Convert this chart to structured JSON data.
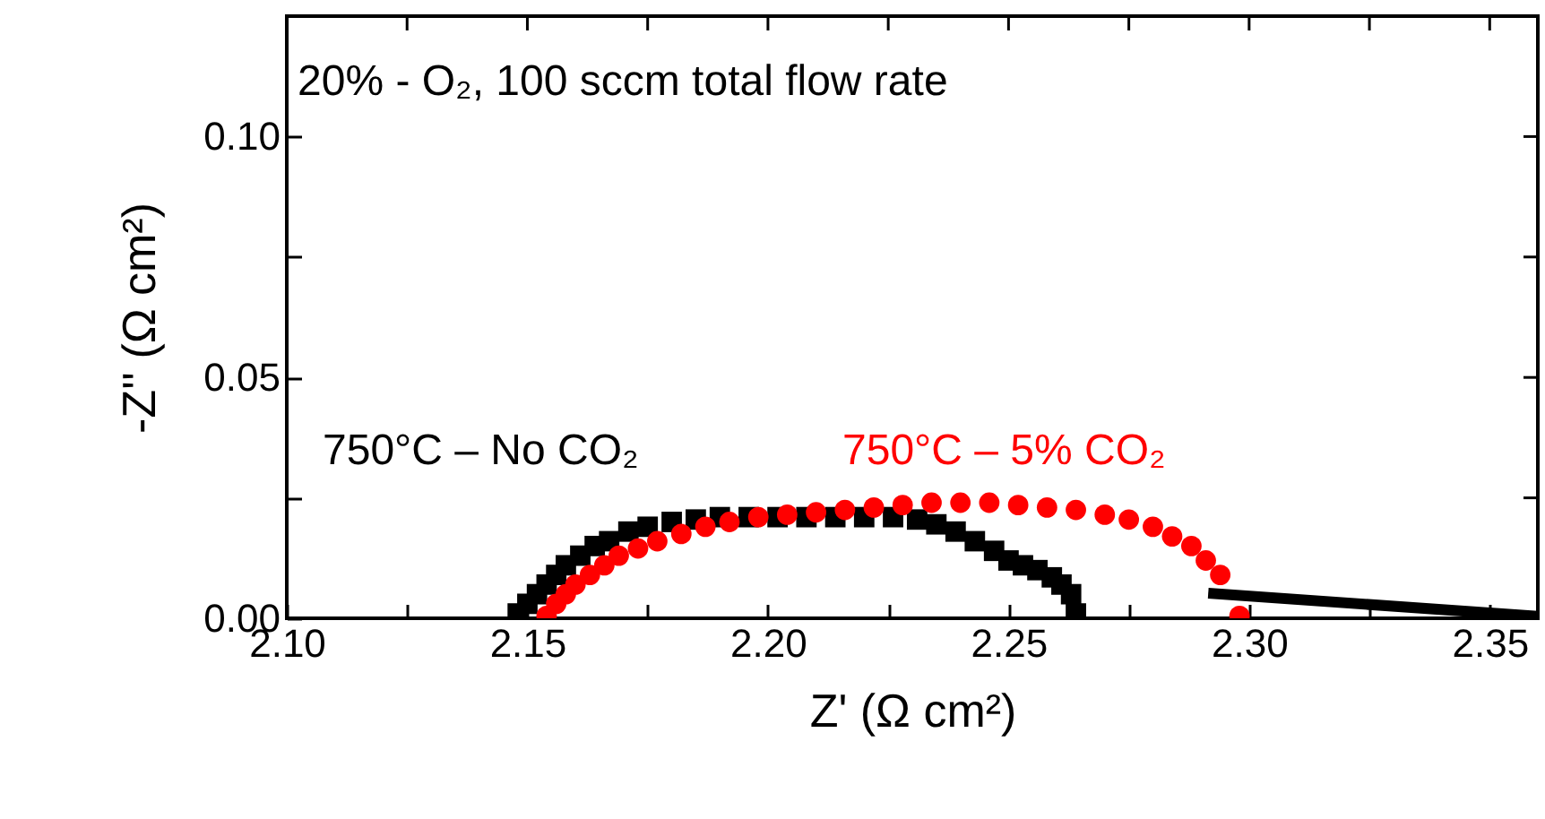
{
  "chart_data": {
    "type": "scatter",
    "annotations": [
      "20% - O₂, 100 sccm total flow rate"
    ],
    "xlabel": "Z' (Ω cm²)",
    "ylabel": "-Z'' (Ω cm²)",
    "xlim": [
      2.1,
      2.36
    ],
    "ylim": [
      0,
      0.125
    ],
    "xticks": [
      {
        "value": 2.1,
        "label": "2.10"
      },
      {
        "value": 2.125,
        "label": null
      },
      {
        "value": 2.15,
        "label": "2.15"
      },
      {
        "value": 2.175,
        "label": null
      },
      {
        "value": 2.2,
        "label": "2.20"
      },
      {
        "value": 2.225,
        "label": null
      },
      {
        "value": 2.25,
        "label": "2.25"
      },
      {
        "value": 2.275,
        "label": null
      },
      {
        "value": 2.3,
        "label": "2.30"
      },
      {
        "value": 2.325,
        "label": null
      },
      {
        "value": 2.35,
        "label": "2.35"
      }
    ],
    "yticks": [
      {
        "value": 0,
        "label": "0.00"
      },
      {
        "value": 0.025,
        "label": null
      },
      {
        "value": 0.05,
        "label": "0.05"
      },
      {
        "value": 0.075,
        "label": null
      },
      {
        "value": 0.1,
        "label": "0.10"
      }
    ],
    "legend": false,
    "grid": false,
    "series": [
      {
        "name": "750°C – No CO₂",
        "color": "#000000",
        "marker": "square",
        "x": [
          2.148,
          2.15,
          2.152,
          2.154,
          2.156,
          2.158,
          2.161,
          2.164,
          2.167,
          2.171,
          2.175,
          2.18,
          2.185,
          2.19,
          2.196,
          2.202,
          2.208,
          2.214,
          2.22,
          2.226,
          2.231,
          2.235,
          2.239,
          2.243,
          2.247,
          2.25,
          2.253,
          2.256,
          2.259,
          2.261,
          2.263,
          2.264
        ],
        "values": [
          0.001,
          0.003,
          0.005,
          0.007,
          0.009,
          0.011,
          0.013,
          0.015,
          0.016,
          0.018,
          0.019,
          0.02,
          0.0205,
          0.021,
          0.021,
          0.021,
          0.021,
          0.021,
          0.021,
          0.021,
          0.0205,
          0.0195,
          0.018,
          0.016,
          0.014,
          0.012,
          0.011,
          0.01,
          0.0085,
          0.007,
          0.005,
          0.001
        ]
      },
      {
        "name": "750°C – 5% CO₂",
        "color": "#ff0000",
        "marker": "circle",
        "x": [
          2.154,
          2.156,
          2.158,
          2.16,
          2.163,
          2.166,
          2.169,
          2.173,
          2.177,
          2.182,
          2.187,
          2.192,
          2.198,
          2.204,
          2.21,
          2.216,
          2.222,
          2.228,
          2.234,
          2.24,
          2.246,
          2.252,
          2.258,
          2.264,
          2.27,
          2.275,
          2.28,
          2.284,
          2.288,
          2.291,
          2.294,
          2.298
        ],
        "values": [
          0.0005,
          0.003,
          0.005,
          0.007,
          0.009,
          0.011,
          0.013,
          0.0145,
          0.016,
          0.0175,
          0.019,
          0.02,
          0.021,
          0.0215,
          0.022,
          0.0225,
          0.023,
          0.0235,
          0.024,
          0.024,
          0.024,
          0.0235,
          0.023,
          0.0225,
          0.0215,
          0.0205,
          0.019,
          0.017,
          0.015,
          0.012,
          0.009,
          0.0005
        ]
      },
      {
        "type": "line",
        "color": "#000000",
        "x": [
          2.2915,
          2.36
        ],
        "values": [
          0.0052,
          0.0004
        ]
      }
    ]
  }
}
